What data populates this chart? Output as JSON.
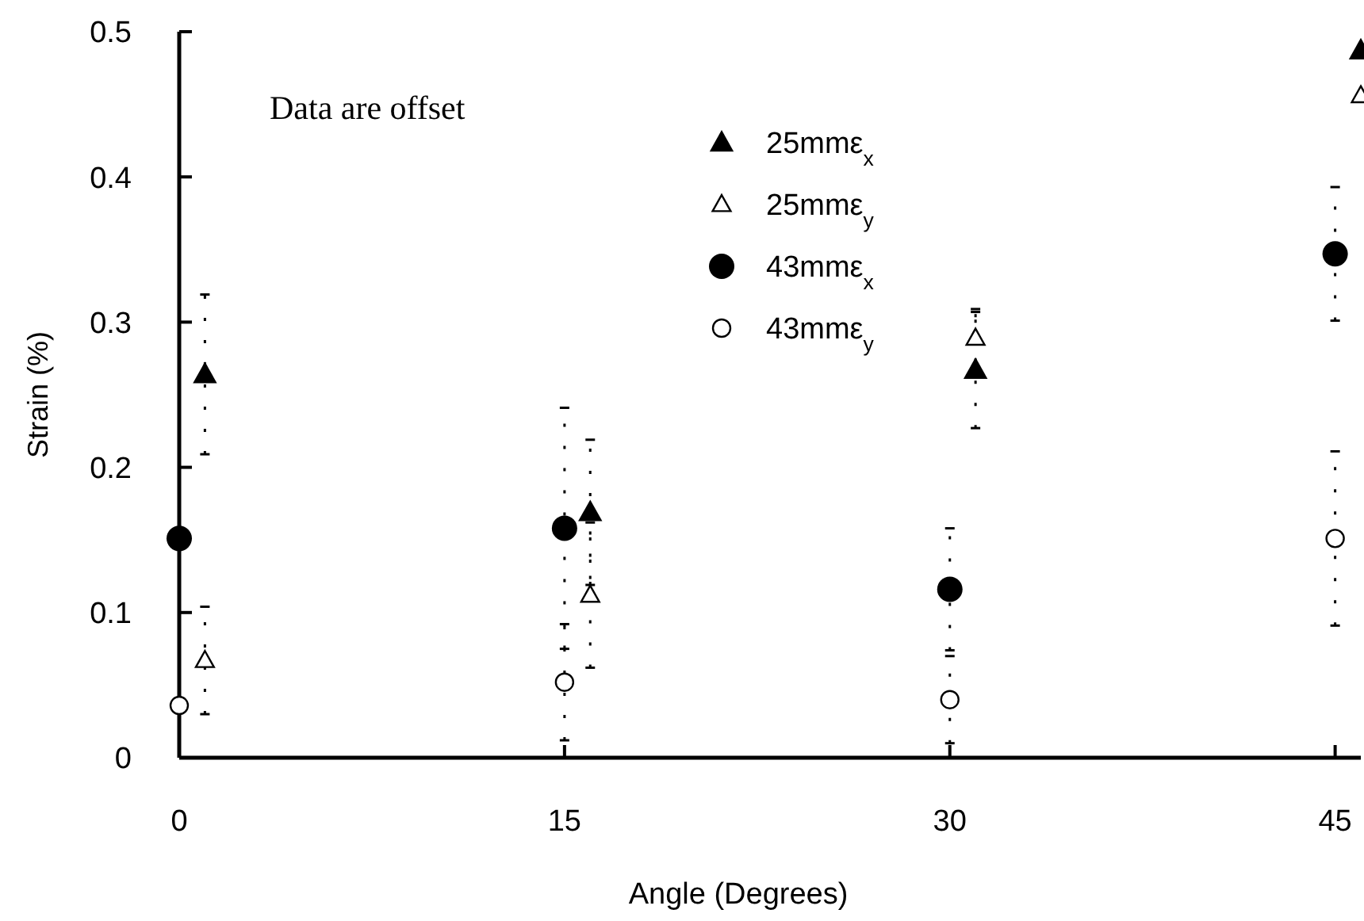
{
  "chart_data": {
    "type": "scatter",
    "xlabel": "Angle (Degrees)",
    "ylabel": "Strain (%)",
    "annotations": [
      "Data are offset"
    ],
    "xlim": [
      0,
      46
    ],
    "xticks": [
      0,
      15,
      30,
      45
    ],
    "ylim": [
      0,
      0.5
    ],
    "yticks": [
      0,
      0.1,
      0.2,
      0.3,
      0.4,
      0.5
    ],
    "legend": "top",
    "grid": false,
    "series": [
      {
        "name": "25mmε$_{x}$",
        "color": "#000000",
        "marker": "triangle",
        "x": [
          1,
          16,
          31,
          46
        ],
        "values": [
          0.264,
          0.169,
          0.267,
          0.487
        ],
        "errors": [
          0.055,
          0.05,
          0.04,
          null
        ]
      },
      {
        "name": "25mmε$_{y}$",
        "color": "#000000",
        "marker": "triangle-open",
        "x": [
          1,
          16,
          31,
          46
        ],
        "values": [
          0.067,
          0.112,
          0.289,
          0.456
        ],
        "errors": [
          0.037,
          0.05,
          0.02,
          null
        ]
      },
      {
        "name": "43mmε$_{x}$",
        "color": "#000000",
        "marker": "circle",
        "x": [
          0,
          15,
          30,
          45
        ],
        "values": [
          0.151,
          0.158,
          0.116,
          0.347
        ],
        "errors": [
          null,
          0.083,
          0.042,
          0.046
        ]
      },
      {
        "name": "43mmε$_{y}$",
        "color": "#000000",
        "marker": "circle-open",
        "x": [
          0,
          15,
          30,
          45
        ],
        "values": [
          0.036,
          0.052,
          0.04,
          0.151
        ],
        "errors": [
          null,
          0.04,
          0.03,
          0.06
        ]
      }
    ]
  }
}
